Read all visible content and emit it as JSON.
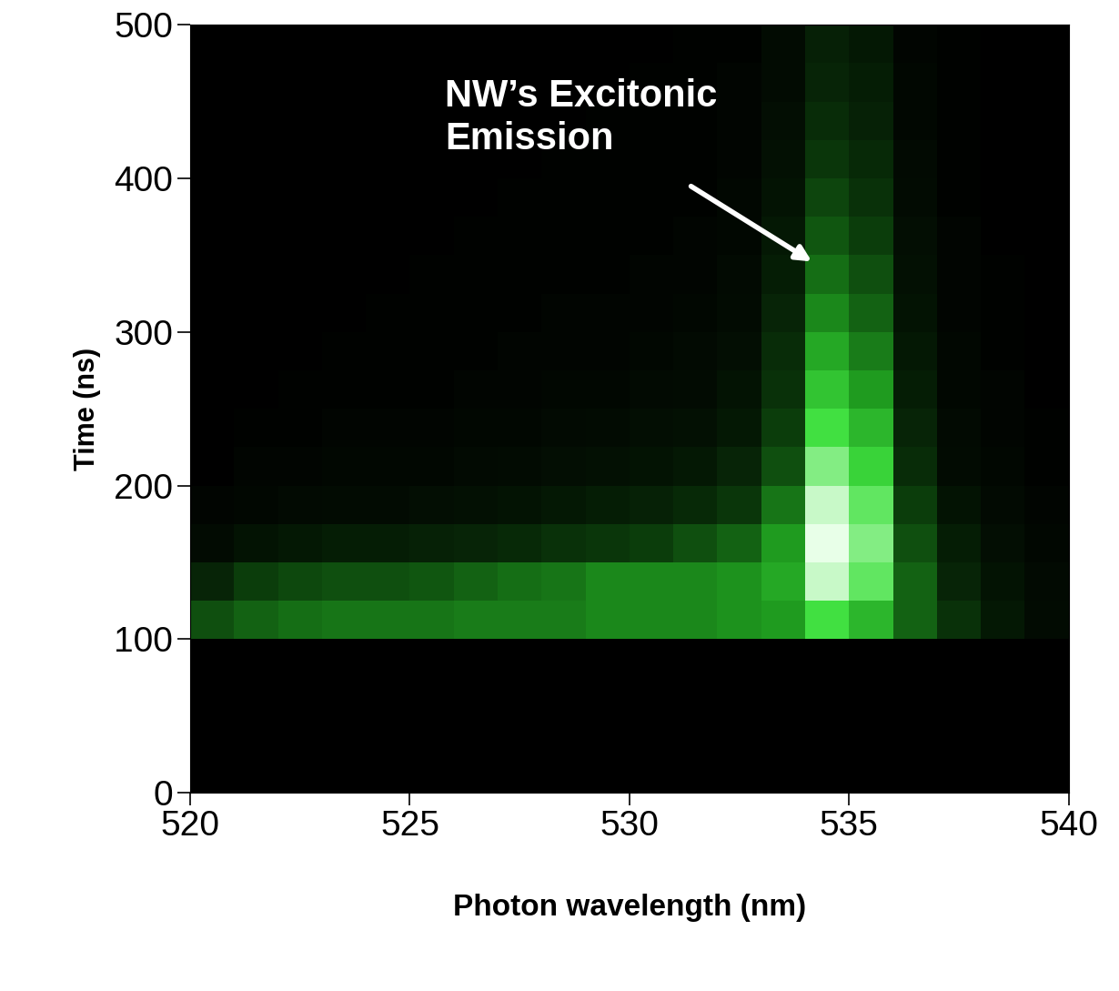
{
  "chart_data": {
    "type": "heatmap",
    "x_label": "Photon wavelength (nm)",
    "y_label": "Time (ns)",
    "xlim": [
      520,
      540
    ],
    "xticks": [
      520,
      525,
      530,
      535,
      540
    ],
    "ylim": [
      0,
      500
    ],
    "yticks": [
      0,
      100,
      200,
      300,
      400,
      500
    ],
    "x_edges": [
      520,
      521,
      522,
      523,
      524,
      525,
      526,
      527,
      528,
      529,
      530,
      531,
      532,
      533,
      534,
      535,
      536,
      537,
      538,
      539,
      540
    ],
    "y_edges": [
      0,
      25,
      50,
      75,
      100,
      125,
      150,
      175,
      200,
      225,
      250,
      275,
      300,
      325,
      350,
      375,
      400,
      425,
      450,
      475,
      500
    ],
    "cells": [
      [
        0,
        0,
        0,
        0,
        0,
        0,
        0,
        0,
        0,
        0,
        0,
        0,
        0,
        0,
        0,
        0,
        0,
        0,
        0,
        0
      ],
      [
        0,
        0,
        0,
        0,
        0,
        0,
        0,
        0,
        0,
        0,
        0,
        0,
        0,
        0,
        0,
        0,
        0,
        0,
        0,
        0
      ],
      [
        0,
        0,
        0,
        0,
        0,
        0,
        0,
        0,
        0,
        0,
        0,
        0,
        0,
        0,
        0,
        0,
        0,
        0,
        0,
        0
      ],
      [
        0,
        0,
        0,
        0,
        0,
        0,
        0,
        0,
        0,
        0,
        0,
        0,
        0,
        0,
        0,
        0,
        0,
        0,
        0,
        0
      ],
      [
        0.3,
        0.35,
        0.38,
        0.4,
        0.4,
        0.4,
        0.42,
        0.42,
        0.42,
        0.45,
        0.45,
        0.45,
        0.48,
        0.5,
        0.75,
        0.6,
        0.35,
        0.2,
        0.1,
        0.05
      ],
      [
        0.15,
        0.25,
        0.28,
        0.3,
        0.3,
        0.32,
        0.35,
        0.38,
        0.4,
        0.45,
        0.45,
        0.45,
        0.48,
        0.55,
        0.95,
        0.8,
        0.35,
        0.15,
        0.08,
        0.04
      ],
      [
        0.05,
        0.08,
        0.1,
        0.12,
        0.12,
        0.14,
        0.15,
        0.17,
        0.2,
        0.22,
        0.25,
        0.3,
        0.35,
        0.5,
        1.0,
        0.85,
        0.3,
        0.12,
        0.06,
        0.03
      ],
      [
        0.02,
        0.03,
        0.04,
        0.05,
        0.05,
        0.06,
        0.07,
        0.08,
        0.1,
        0.12,
        0.14,
        0.17,
        0.22,
        0.4,
        0.95,
        0.8,
        0.25,
        0.08,
        0.04,
        0.02
      ],
      [
        0,
        0.02,
        0.02,
        0.03,
        0.03,
        0.03,
        0.04,
        0.05,
        0.06,
        0.07,
        0.08,
        0.1,
        0.15,
        0.3,
        0.85,
        0.7,
        0.18,
        0.05,
        0.03,
        0.01
      ],
      [
        0,
        0.01,
        0.01,
        0.02,
        0.02,
        0.02,
        0.03,
        0.03,
        0.04,
        0.05,
        0.06,
        0.07,
        0.1,
        0.25,
        0.75,
        0.6,
        0.15,
        0.04,
        0.02,
        0.01
      ],
      [
        0,
        0,
        0.01,
        0.01,
        0.01,
        0.01,
        0.02,
        0.02,
        0.03,
        0.03,
        0.04,
        0.05,
        0.08,
        0.2,
        0.65,
        0.5,
        0.12,
        0.03,
        0.02,
        0
      ],
      [
        0,
        0,
        0,
        0.01,
        0.01,
        0.01,
        0.01,
        0.02,
        0.02,
        0.02,
        0.03,
        0.04,
        0.06,
        0.18,
        0.55,
        0.42,
        0.1,
        0.03,
        0.01,
        0
      ],
      [
        0,
        0,
        0,
        0,
        0.01,
        0.01,
        0.01,
        0.01,
        0.02,
        0.02,
        0.02,
        0.03,
        0.05,
        0.15,
        0.45,
        0.35,
        0.08,
        0.02,
        0.01,
        0
      ],
      [
        0,
        0,
        0,
        0,
        0,
        0.01,
        0.01,
        0.01,
        0.01,
        0.01,
        0.02,
        0.02,
        0.04,
        0.12,
        0.38,
        0.3,
        0.07,
        0.02,
        0.01,
        0
      ],
      [
        0,
        0,
        0,
        0,
        0,
        0,
        0.01,
        0.01,
        0.01,
        0.01,
        0.01,
        0.02,
        0.03,
        0.1,
        0.32,
        0.25,
        0.06,
        0.02,
        0,
        0
      ],
      [
        0,
        0,
        0,
        0,
        0,
        0,
        0,
        0.01,
        0.01,
        0.01,
        0.01,
        0.01,
        0.03,
        0.08,
        0.27,
        0.2,
        0.05,
        0.01,
        0,
        0
      ],
      [
        0,
        0,
        0,
        0,
        0,
        0,
        0,
        0,
        0.01,
        0.01,
        0.01,
        0.01,
        0.02,
        0.07,
        0.22,
        0.17,
        0.04,
        0.01,
        0,
        0
      ],
      [
        0,
        0,
        0,
        0,
        0,
        0,
        0,
        0,
        0,
        0.01,
        0.01,
        0.01,
        0.02,
        0.06,
        0.18,
        0.14,
        0.03,
        0.01,
        0,
        0
      ],
      [
        0,
        0,
        0,
        0,
        0,
        0,
        0,
        0,
        0,
        0,
        0.01,
        0.01,
        0.02,
        0.05,
        0.15,
        0.12,
        0.03,
        0.01,
        0,
        0
      ],
      [
        0,
        0,
        0,
        0,
        0,
        0,
        0,
        0,
        0,
        0,
        0,
        0.01,
        0.01,
        0.05,
        0.13,
        0.1,
        0.02,
        0.01,
        0,
        0
      ]
    ],
    "annotations": [
      {
        "text": "NW’s Excitonic\nEmission",
        "x": 534.2,
        "y": 345
      }
    ]
  }
}
